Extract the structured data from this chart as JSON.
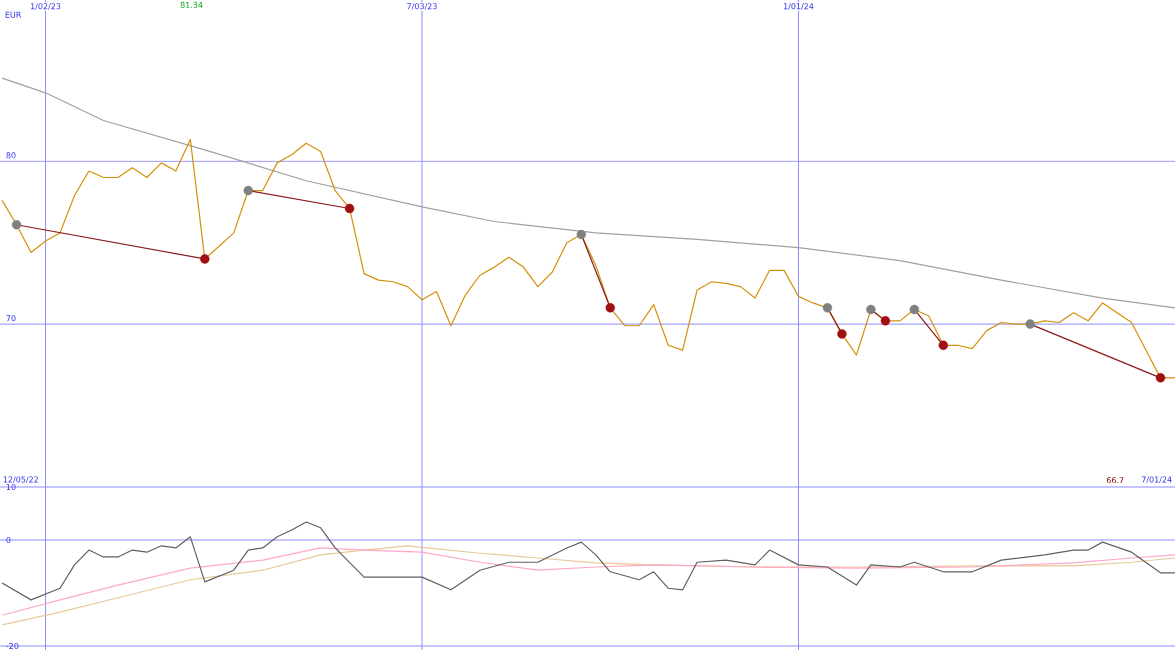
{
  "chart_data": [
    {
      "type": "line",
      "ylabel": "EUR",
      "xlim": [
        "2022-12-11",
        "2024-07-01"
      ],
      "ylim": [
        60,
        89.9
      ],
      "yticks": [
        70,
        80
      ],
      "xticks": [
        {
          "value": "2023-01-02",
          "label": "1/02/23"
        },
        {
          "value": "2023-07-03",
          "label": "7/03/23"
        },
        {
          "value": "2024-01-01",
          "label": "1/01/24"
        }
      ],
      "grid": true,
      "annotations": [
        "12/05/22",
        "7/01/24",
        "81.34",
        "66.7"
      ],
      "x": [
        "2022-12-12",
        "2022-12-19",
        "2022-12-26",
        "2023-01-02",
        "2023-01-09",
        "2023-01-16",
        "2023-01-23",
        "2023-01-30",
        "2023-02-06",
        "2023-02-13",
        "2023-02-20",
        "2023-02-27",
        "2023-03-06",
        "2023-03-13",
        "2023-03-20",
        "2023-03-27",
        "2023-04-03",
        "2023-04-10",
        "2023-04-17",
        "2023-04-24",
        "2023-05-01",
        "2023-05-08",
        "2023-05-15",
        "2023-05-22",
        "2023-05-29",
        "2023-06-05",
        "2023-06-12",
        "2023-06-19",
        "2023-06-26",
        "2023-07-03",
        "2023-07-10",
        "2023-07-17",
        "2023-07-24",
        "2023-07-31",
        "2023-08-07",
        "2023-08-14",
        "2023-08-21",
        "2023-08-28",
        "2023-09-04",
        "2023-09-11",
        "2023-09-18",
        "2023-09-25",
        "2023-10-02",
        "2023-10-09",
        "2023-10-16",
        "2023-10-23",
        "2023-10-30",
        "2023-11-06",
        "2023-11-13",
        "2023-11-20",
        "2023-11-27",
        "2023-12-04",
        "2023-12-11",
        "2023-12-18",
        "2023-12-25",
        "2024-01-01",
        "2024-01-08",
        "2024-01-15",
        "2024-01-22",
        "2024-01-29",
        "2024-02-05",
        "2024-02-12",
        "2024-02-19",
        "2024-02-26",
        "2024-03-04",
        "2024-03-11",
        "2024-03-18",
        "2024-03-25",
        "2024-04-01",
        "2024-04-08",
        "2024-04-15",
        "2024-04-22",
        "2024-04-29",
        "2024-05-06",
        "2024-05-13",
        "2024-05-20",
        "2024-05-27",
        "2024-06-03",
        "2024-06-10",
        "2024-06-17",
        "2024-06-24",
        "2024-07-01"
      ],
      "series": [
        {
          "color": "#a0a0a0",
          "x": [
            "2022-12-12",
            "2023-01-02",
            "2023-01-30",
            "2023-03-20",
            "2023-05-08",
            "2023-07-03",
            "2023-08-07",
            "2023-09-25",
            "2023-11-13",
            "2024-01-01",
            "2024-02-19",
            "2024-04-08",
            "2024-05-27",
            "2024-07-01"
          ],
          "values": [
            85.1,
            84.2,
            82.5,
            80.7,
            78.8,
            77.2,
            76.3,
            75.6,
            75.2,
            74.7,
            73.9,
            72.7,
            71.6,
            71.0
          ]
        },
        {
          "color": "#d4900a",
          "values": [
            77.6,
            76.1,
            74.4,
            75.1,
            75.6,
            77.9,
            79.4,
            79.0,
            79.0,
            79.6,
            79.0,
            79.9,
            79.4,
            81.34,
            74.0,
            74.8,
            75.6,
            78.2,
            78.2,
            79.9,
            80.4,
            81.1,
            80.6,
            78.2,
            77.1,
            73.1,
            72.7,
            72.6,
            72.3,
            71.5,
            72.0,
            69.9,
            71.8,
            73.0,
            73.5,
            74.1,
            73.5,
            72.3,
            73.2,
            75.0,
            75.5,
            73.6,
            71.0,
            69.9,
            69.9,
            71.2,
            68.7,
            68.4,
            72.1,
            72.6,
            72.5,
            72.3,
            71.6,
            73.3,
            73.3,
            71.7,
            71.3,
            71.0,
            69.4,
            68.1,
            70.9,
            70.2,
            70.2,
            70.9,
            70.5,
            68.7,
            68.7,
            68.5,
            69.6,
            70.1,
            70.0,
            70.0,
            70.2,
            70.1,
            70.7,
            70.2,
            71.3,
            70.7,
            70.1,
            68.4,
            66.7,
            66.7
          ]
        },
        {
          "color": "#8b1a1a",
          "marker": "circle",
          "x": [
            "2022-12-19",
            "2023-03-20"
          ],
          "values": [
            76.1,
            74.0
          ],
          "colors": [
            "#808080",
            "#a01010"
          ]
        },
        {
          "color": "#8b1a1a",
          "marker": "circle",
          "x": [
            "2023-04-10",
            "2023-05-29"
          ],
          "values": [
            78.2,
            77.1
          ],
          "colors": [
            "#808080",
            "#a01010"
          ]
        },
        {
          "color": "#8b1a1a",
          "marker": "circle",
          "x": [
            "2023-09-18",
            "2023-10-02"
          ],
          "values": [
            75.5,
            71.0
          ],
          "colors": [
            "#808080",
            "#a01010"
          ]
        },
        {
          "color": "#8b1a1a",
          "marker": "circle",
          "x": [
            "2024-01-15",
            "2024-01-22"
          ],
          "values": [
            71.0,
            69.4
          ],
          "colors": [
            "#808080",
            "#a01010"
          ]
        },
        {
          "color": "#8b1a1a",
          "marker": "circle",
          "x": [
            "2024-02-05",
            "2024-02-12"
          ],
          "values": [
            70.9,
            70.2
          ],
          "colors": [
            "#808080",
            "#a01010"
          ]
        },
        {
          "color": "#8b1a1a",
          "marker": "circle",
          "x": [
            "2024-02-26",
            "2024-03-11"
          ],
          "values": [
            70.9,
            68.7
          ],
          "colors": [
            "#808080",
            "#a01010"
          ]
        },
        {
          "color": "#8b1a1a",
          "marker": "circle",
          "x": [
            "2024-04-22",
            "2024-06-24"
          ],
          "values": [
            70.0,
            66.7
          ],
          "colors": [
            "#808080",
            "#a01010"
          ]
        }
      ]
    },
    {
      "type": "line",
      "xlim": [
        "2022-12-11",
        "2024-07-01"
      ],
      "ylim": [
        -20.75,
        10
      ],
      "yticks": [
        10,
        0,
        -20
      ],
      "xticks": [
        {
          "value": "2023-01-02",
          "label": null
        },
        {
          "value": "2023-07-03",
          "label": null
        },
        {
          "value": "2024-01-01",
          "label": null
        }
      ],
      "grid": true,
      "tick_labels": "y",
      "series": [
        {
          "color": "#e8c898",
          "x": [
            "2022-12-12",
            "2023-01-09",
            "2023-02-06",
            "2023-03-13",
            "2023-04-17",
            "2023-05-15",
            "2023-06-05",
            "2023-06-26",
            "2023-07-31",
            "2023-08-28",
            "2023-09-25",
            "2023-10-23",
            "2023-12-11",
            "2024-01-29",
            "2024-03-25",
            "2024-05-13",
            "2024-06-10",
            "2024-07-01"
          ],
          "values": [
            -16.0,
            -13.6,
            -10.9,
            -7.5,
            -5.7,
            -2.8,
            -1.9,
            -1.1,
            -2.5,
            -3.4,
            -4.3,
            -4.7,
            -5.1,
            -5.1,
            -4.9,
            -4.9,
            -4.2,
            -3.4
          ]
        },
        {
          "color": "#ffa8c8",
          "x": [
            "2022-12-12",
            "2023-01-09",
            "2023-02-06",
            "2023-03-13",
            "2023-04-17",
            "2023-05-15",
            "2023-06-05",
            "2023-07-03",
            "2023-07-31",
            "2023-08-28",
            "2023-09-25",
            "2023-10-23",
            "2023-12-11",
            "2024-01-29",
            "2024-03-25",
            "2024-05-13",
            "2024-06-10",
            "2024-07-01"
          ],
          "values": [
            -14.2,
            -11.3,
            -8.5,
            -5.3,
            -3.8,
            -1.5,
            -1.9,
            -2.3,
            -4.2,
            -5.7,
            -5.1,
            -4.7,
            -5.1,
            -5.3,
            -5.1,
            -4.3,
            -3.4,
            -2.8
          ]
        },
        {
          "color": "#606060",
          "x": [
            "2022-12-12",
            "2022-12-26",
            "2023-01-09",
            "2023-01-16",
            "2023-01-23",
            "2023-01-30",
            "2023-02-06",
            "2023-02-13",
            "2023-02-20",
            "2023-02-27",
            "2023-03-06",
            "2023-03-13",
            "2023-03-20",
            "2023-04-03",
            "2023-04-10",
            "2023-04-17",
            "2023-04-24",
            "2023-05-01",
            "2023-05-08",
            "2023-05-15",
            "2023-05-22",
            "2023-06-05",
            "2023-06-26",
            "2023-07-03",
            "2023-07-17",
            "2023-07-31",
            "2023-08-14",
            "2023-08-28",
            "2023-09-11",
            "2023-09-18",
            "2023-09-25",
            "2023-10-02",
            "2023-10-16",
            "2023-10-23",
            "2023-10-30",
            "2023-11-06",
            "2023-11-13",
            "2023-11-27",
            "2023-12-11",
            "2023-12-18",
            "2024-01-01",
            "2024-01-15",
            "2024-01-29",
            "2024-02-05",
            "2024-02-19",
            "2024-02-26",
            "2024-03-11",
            "2024-03-25",
            "2024-04-08",
            "2024-04-29",
            "2024-05-13",
            "2024-05-20",
            "2024-05-27",
            "2024-06-10",
            "2024-06-24",
            "2024-07-01"
          ],
          "values": [
            -8.1,
            -11.3,
            -9.1,
            -4.7,
            -1.9,
            -3.2,
            -3.2,
            -1.9,
            -2.3,
            -1.1,
            -1.5,
            0.6,
            -7.9,
            -5.7,
            -1.9,
            -1.5,
            0.6,
            1.9,
            3.4,
            2.3,
            -1.5,
            -7.0,
            -7.0,
            -7.0,
            -9.4,
            -5.7,
            -4.2,
            -4.2,
            -1.5,
            -0.4,
            -2.8,
            -6.0,
            -7.5,
            -6.0,
            -9.1,
            -9.4,
            -4.2,
            -3.8,
            -4.7,
            -1.9,
            -4.7,
            -5.1,
            -8.5,
            -4.7,
            -5.1,
            -4.2,
            -6.0,
            -6.0,
            -3.8,
            -2.8,
            -1.9,
            -1.9,
            -0.4,
            -2.3,
            -6.2,
            -6.2
          ]
        }
      ]
    }
  ]
}
